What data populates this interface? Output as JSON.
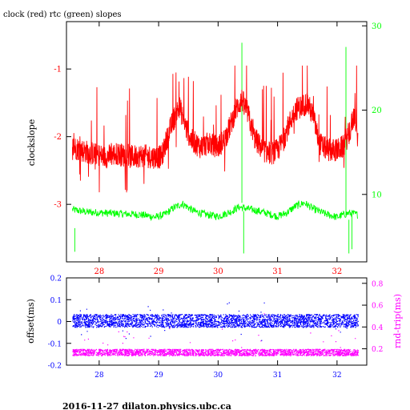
{
  "title": "clock (red) rtc (green) slopes",
  "footer": "2016-11-27  dilaton.physics.ubc.ca",
  "chart_data": [
    {
      "type": "line",
      "ylabel": "clockslope",
      "xlim": [
        27.45,
        32.5
      ],
      "ylim": [
        -3.85,
        -0.3
      ],
      "y2lim": [
        2,
        30.5
      ],
      "xticks": [
        28,
        29,
        30,
        31,
        32
      ],
      "yticks_left": [
        -1,
        -2,
        -3
      ],
      "yticks_right": [
        10,
        20,
        30
      ],
      "axis_colors": {
        "left": "#ff0000",
        "right": "#00ff00",
        "bottom": "#ff0000",
        "frame": "#000000"
      },
      "series": [
        {
          "color": "#ff0000",
          "axis": "left",
          "x": [
            27.55,
            27.7,
            27.9,
            28.1,
            28.3,
            28.5,
            28.7,
            28.9,
            29.05,
            29.15,
            29.25,
            29.35,
            29.45,
            29.55,
            29.7,
            29.85,
            30.0,
            30.1,
            30.2,
            30.3,
            30.4,
            30.5,
            30.6,
            30.75,
            30.9,
            31.0,
            31.1,
            31.2,
            31.3,
            31.4,
            31.5,
            31.6,
            31.7,
            31.85,
            32.0,
            32.1,
            32.2,
            32.3,
            32.35
          ],
          "values": [
            -2.15,
            -2.2,
            -2.25,
            -2.3,
            -2.25,
            -2.3,
            -2.28,
            -2.3,
            -2.3,
            -2.0,
            -1.75,
            -1.55,
            -1.85,
            -2.05,
            -2.15,
            -2.1,
            -2.15,
            -2.05,
            -1.85,
            -1.6,
            -1.45,
            -1.65,
            -2.0,
            -2.2,
            -2.25,
            -2.2,
            -2.05,
            -1.8,
            -1.6,
            -1.55,
            -1.5,
            -1.7,
            -2.1,
            -2.2,
            -2.2,
            -2.15,
            -1.95,
            -1.65,
            -2.1
          ]
        },
        {
          "color": "#00ff00",
          "axis": "right",
          "x": [
            27.55,
            27.8,
            28.1,
            28.4,
            28.7,
            28.95,
            29.1,
            29.25,
            29.4,
            29.6,
            29.8,
            30.0,
            30.2,
            30.35,
            30.5,
            30.7,
            30.9,
            31.0,
            31.15,
            31.3,
            31.45,
            31.6,
            31.8,
            32.0,
            32.2,
            32.35
          ],
          "values": [
            8.2,
            7.9,
            7.8,
            7.7,
            7.6,
            7.3,
            7.6,
            8.4,
            8.9,
            8.0,
            7.6,
            7.4,
            7.9,
            8.5,
            8.3,
            8.0,
            7.6,
            7.4,
            7.8,
            8.6,
            9.0,
            8.3,
            7.7,
            7.3,
            7.8,
            7.6
          ]
        }
      ]
    },
    {
      "type": "scatter",
      "ylabel": "offset(ms)",
      "y2label": "rnd-trip(ms)",
      "xlim": [
        27.45,
        32.5
      ],
      "ylim": [
        -0.2,
        0.2
      ],
      "y2lim": [
        0.05,
        0.85
      ],
      "xticks": [
        28,
        29,
        30,
        31,
        32
      ],
      "yticks_left": [
        0.2,
        0.1,
        0,
        -0.1,
        -0.2
      ],
      "yticks_right": [
        0.8,
        0.6,
        0.4,
        0.2
      ],
      "axis_colors": {
        "left": "#0000ff",
        "right": "#ff00ff",
        "bottom": "#0000ff",
        "frame": "#000000"
      },
      "series": [
        {
          "color": "#0000ff",
          "axis": "left",
          "x_range": [
            27.55,
            32.35
          ],
          "center": 0.005,
          "spread": 0.03
        },
        {
          "color": "#ff00ff",
          "axis": "right",
          "x_range": [
            27.55,
            32.35
          ],
          "center": 0.17,
          "spread": 0.03
        }
      ]
    }
  ]
}
